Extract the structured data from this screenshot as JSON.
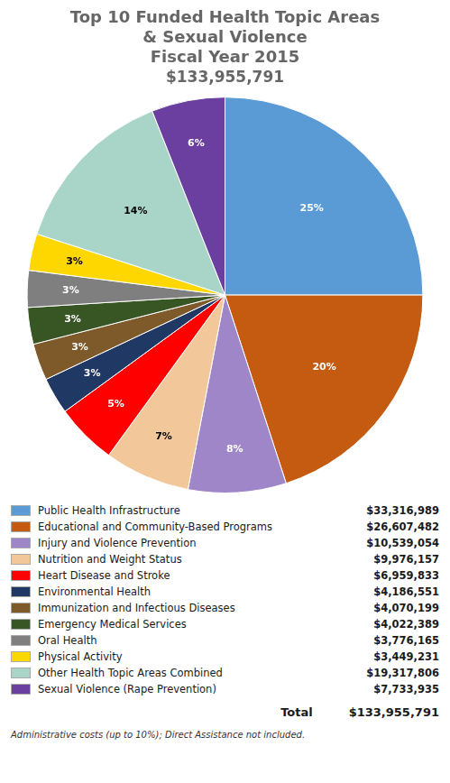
{
  "chart_data": {
    "type": "pie",
    "title": [
      "Top 10 Funded Health Topic Areas",
      "& Sexual Violence",
      "Fiscal Year 2015"
    ],
    "subtitle": "$133,955,791",
    "categories": [
      "Public Health Infrastructure",
      "Educational and Community-Based Programs",
      "Injury and Violence Prevention",
      "Nutrition and Weight Status",
      "Heart Disease and Stroke",
      "Environmental Health",
      "Immunization and Infectious Diseases",
      "Emergency Medical Services",
      "Oral Health",
      "Physical Activity",
      "Other Health Topic Areas Combined",
      "Sexual Violence (Rape Prevention)"
    ],
    "values": [
      25,
      20,
      8,
      7,
      5,
      3,
      3,
      3,
      3,
      3,
      14,
      6
    ],
    "value_labels": [
      "25%",
      "20%",
      "8%",
      "7%",
      "5%",
      "3%",
      "3%",
      "3%",
      "3%",
      "3%",
      "14%",
      "6%"
    ],
    "data_labels": true,
    "colors": [
      "#5B9BD5",
      "#C55A11",
      "#9E86C8",
      "#F2C89B",
      "#FF0000",
      "#1F3864",
      "#7E5A2A",
      "#375623",
      "#7F7F7F",
      "#FFD700",
      "#A8D5C8",
      "#6B3FA0"
    ],
    "amounts": [
      "$33,316,989",
      "$26,607,482",
      "$10,539,054",
      "$9,976,157",
      "$6,959,833",
      "$4,186,551",
      "$4,070,199",
      "$4,022,389",
      "$3,776,165",
      "$3,449,231",
      "$19,317,806",
      "$7,733,935"
    ],
    "total_label": "Total",
    "total_amount": "$133,955,791",
    "footnote": "Administrative costs (up to 10%); Direct Assistance not included.",
    "legend": "bottom"
  }
}
